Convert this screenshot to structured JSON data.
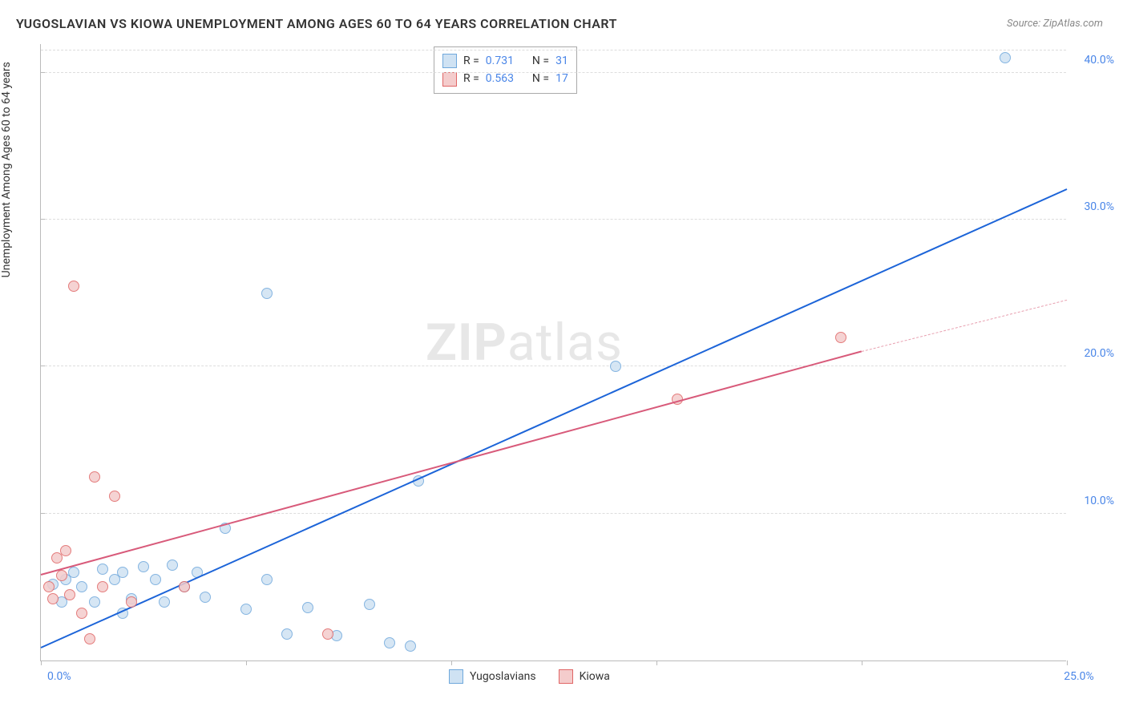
{
  "title": "YUGOSLAVIAN VS KIOWA UNEMPLOYMENT AMONG AGES 60 TO 64 YEARS CORRELATION CHART",
  "source": "Source: ZipAtlas.com",
  "y_axis_title": "Unemployment Among Ages 60 to 64 years",
  "watermark": {
    "bold": "ZIP",
    "rest": "atlas"
  },
  "chart": {
    "type": "scatter",
    "background_color": "#ffffff",
    "grid_color": "#dddddd",
    "axis_color": "#bbbbbb",
    "xlim": [
      0,
      25
    ],
    "ylim": [
      0,
      42
    ],
    "x_ticks": [
      0,
      5,
      10,
      15,
      20,
      25
    ],
    "x_tick_labels": [
      "0.0%",
      "",
      "",
      "",
      "",
      "25.0%"
    ],
    "y_ticks": [
      10,
      20,
      30,
      40
    ],
    "y_tick_labels": [
      "10.0%",
      "20.0%",
      "30.0%",
      "40.0%"
    ],
    "series": [
      {
        "name": "Yugoslavians",
        "color_fill": "#cfe2f3",
        "color_stroke": "#6fa8dc",
        "marker_radius": 7,
        "points": [
          [
            0.3,
            5.2
          ],
          [
            0.6,
            5.5
          ],
          [
            0.5,
            4.0
          ],
          [
            0.8,
            6.0
          ],
          [
            1.0,
            5.0
          ],
          [
            1.3,
            4.0
          ],
          [
            1.5,
            6.2
          ],
          [
            1.8,
            5.5
          ],
          [
            2.0,
            6.0
          ],
          [
            2.2,
            4.2
          ],
          [
            2.5,
            6.4
          ],
          [
            2.8,
            5.5
          ],
          [
            3.0,
            4.0
          ],
          [
            3.2,
            6.5
          ],
          [
            3.5,
            5.0
          ],
          [
            3.8,
            6.0
          ],
          [
            4.0,
            4.3
          ],
          [
            4.5,
            9.0
          ],
          [
            5.0,
            3.5
          ],
          [
            5.5,
            5.5
          ],
          [
            6.0,
            1.8
          ],
          [
            6.5,
            3.6
          ],
          [
            7.2,
            1.7
          ],
          [
            8.0,
            3.8
          ],
          [
            8.5,
            1.2
          ],
          [
            9.0,
            1.0
          ],
          [
            9.2,
            12.2
          ],
          [
            5.5,
            25.0
          ],
          [
            14.0,
            20.0
          ],
          [
            23.5,
            41.0
          ],
          [
            2.0,
            3.2
          ]
        ],
        "regression": {
          "x1": 0,
          "y1": 0.8,
          "x2": 25,
          "y2": 32.0,
          "color": "#1c64d8",
          "width": 2,
          "dash": false
        }
      },
      {
        "name": "Kiowa",
        "color_fill": "#f4cccc",
        "color_stroke": "#e06666",
        "marker_radius": 7,
        "points": [
          [
            0.2,
            5.0
          ],
          [
            0.3,
            4.2
          ],
          [
            0.4,
            7.0
          ],
          [
            0.5,
            5.8
          ],
          [
            0.6,
            7.5
          ],
          [
            0.7,
            4.5
          ],
          [
            0.8,
            25.5
          ],
          [
            1.0,
            3.2
          ],
          [
            1.2,
            1.5
          ],
          [
            1.3,
            12.5
          ],
          [
            1.5,
            5.0
          ],
          [
            1.8,
            11.2
          ],
          [
            2.2,
            4.0
          ],
          [
            3.5,
            5.0
          ],
          [
            7.0,
            1.8
          ],
          [
            15.5,
            17.8
          ],
          [
            19.5,
            22.0
          ]
        ],
        "regression": {
          "x1": 0,
          "y1": 5.8,
          "x2": 20,
          "y2": 21.0,
          "color": "#d85a7a",
          "width": 2,
          "dash": false
        },
        "regression_ext": {
          "x1": 20,
          "y1": 21.0,
          "x2": 25,
          "y2": 24.5,
          "color": "#e8a0b0",
          "width": 1,
          "dash": true
        }
      }
    ],
    "legend_top": {
      "rows": [
        {
          "swatch_fill": "#cfe2f3",
          "swatch_stroke": "#6fa8dc",
          "r_label": "R =",
          "r": "0.731",
          "n_label": "N =",
          "n": "31"
        },
        {
          "swatch_fill": "#f4cccc",
          "swatch_stroke": "#e06666",
          "r_label": "R =",
          "r": "0.563",
          "n_label": "N =",
          "n": "17"
        }
      ],
      "label_color": "#333333",
      "value_color": "#4a86e8"
    },
    "legend_bottom": {
      "items": [
        {
          "swatch_fill": "#cfe2f3",
          "swatch_stroke": "#6fa8dc",
          "label": "Yugoslavians"
        },
        {
          "swatch_fill": "#f4cccc",
          "swatch_stroke": "#e06666",
          "label": "Kiowa"
        }
      ]
    }
  }
}
